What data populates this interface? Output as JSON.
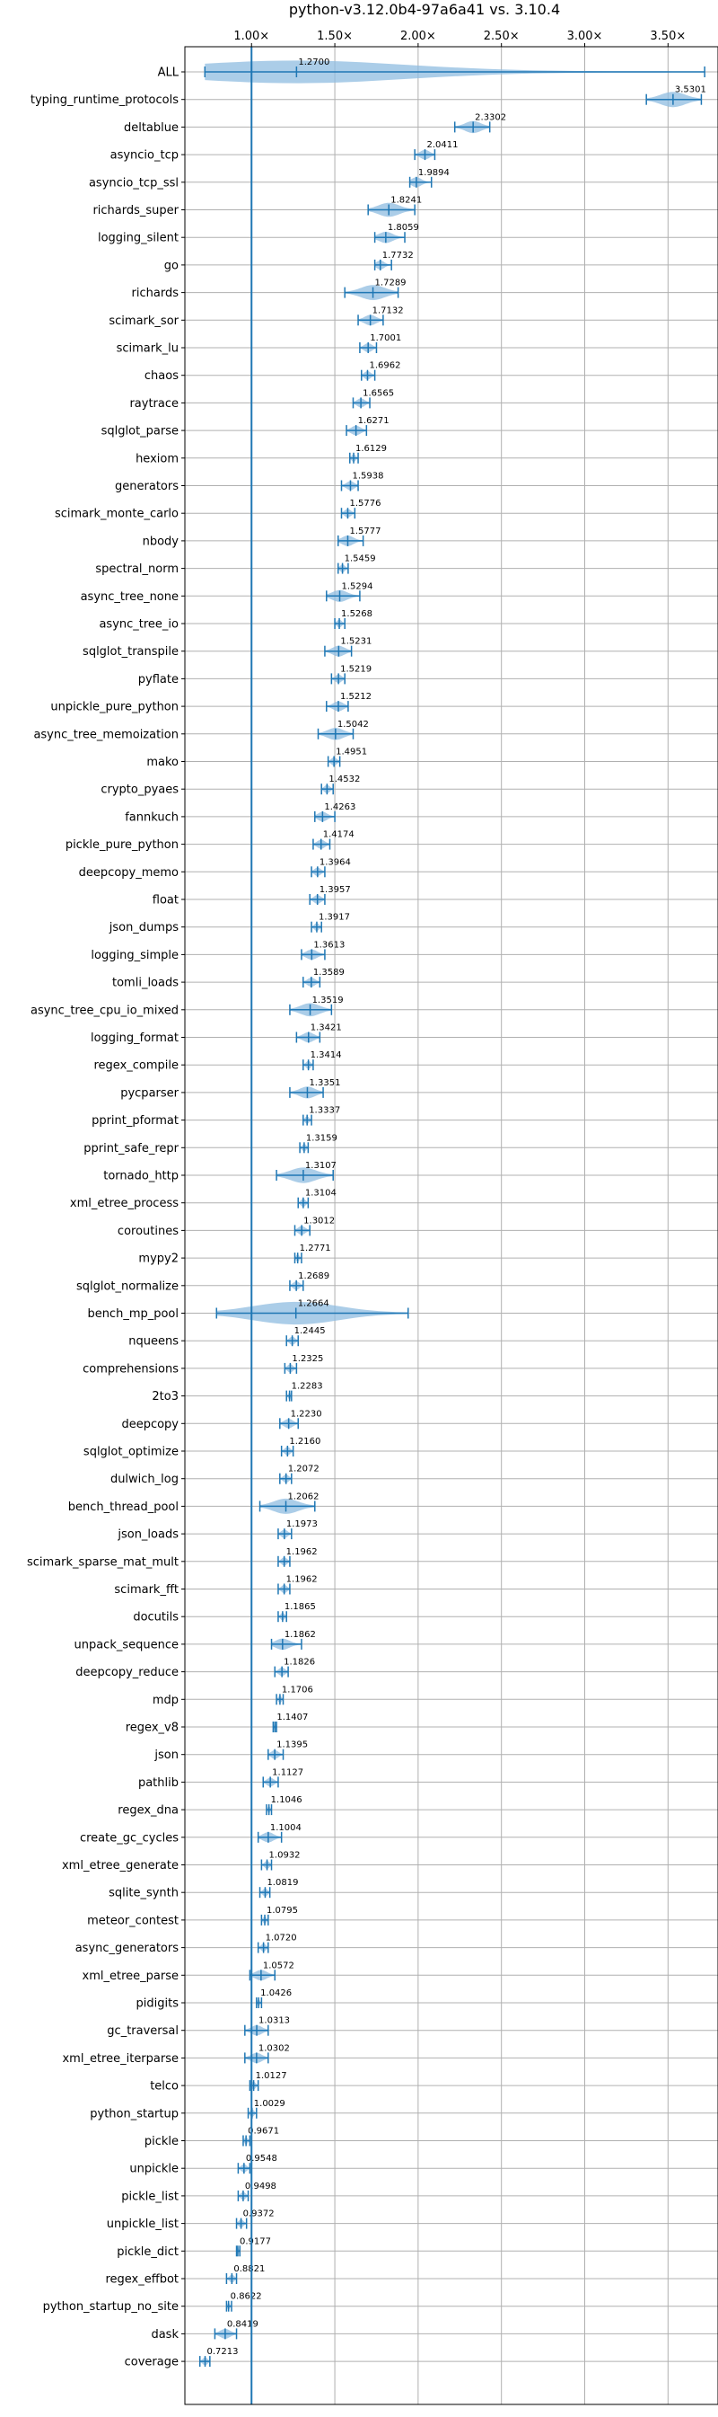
{
  "chart_data": {
    "type": "violin",
    "orientation": "horizontal",
    "title": "python-v3.12.0b4-97a6a41 vs. 3.10.4",
    "xlim": [
      0.6,
      3.8
    ],
    "xticks": [
      1.0,
      1.5,
      2.0,
      2.5,
      3.0,
      3.5
    ],
    "xtick_labels": [
      "1.00×",
      "1.50×",
      "2.00×",
      "2.50×",
      "3.00×",
      "3.50×"
    ],
    "reference_line": 1.0,
    "grid": true,
    "colors": {
      "violin": "#8fbce0",
      "line": "#1f77b4",
      "grid": "#b0b0b0"
    },
    "series": [
      {
        "name": "ALL",
        "mean": 1.27,
        "min": 0.72,
        "max": 3.72,
        "spread": 0.35
      },
      {
        "name": "typing_runtime_protocols",
        "mean": 3.5301,
        "min": 3.37,
        "max": 3.7,
        "spread": 0.16
      },
      {
        "name": "deltablue",
        "mean": 2.3302,
        "min": 2.22,
        "max": 2.43,
        "spread": 0.1
      },
      {
        "name": "asyncio_tcp",
        "mean": 2.0411,
        "min": 1.98,
        "max": 2.1,
        "spread": 0.05
      },
      {
        "name": "asyncio_tcp_ssl",
        "mean": 1.9894,
        "min": 1.95,
        "max": 2.08,
        "spread": 0.05
      },
      {
        "name": "richards_super",
        "mean": 1.8241,
        "min": 1.7,
        "max": 1.98,
        "spread": 0.12
      },
      {
        "name": "logging_silent",
        "mean": 1.8059,
        "min": 1.74,
        "max": 1.92,
        "spread": 0.07
      },
      {
        "name": "go",
        "mean": 1.7732,
        "min": 1.74,
        "max": 1.84,
        "spread": 0.04
      },
      {
        "name": "richards",
        "mean": 1.7289,
        "min": 1.56,
        "max": 1.88,
        "spread": 0.1
      },
      {
        "name": "scimark_sor",
        "mean": 1.7132,
        "min": 1.64,
        "max": 1.79,
        "spread": 0.06
      },
      {
        "name": "scimark_lu",
        "mean": 1.7001,
        "min": 1.65,
        "max": 1.75,
        "spread": 0.04
      },
      {
        "name": "chaos",
        "mean": 1.6962,
        "min": 1.66,
        "max": 1.74,
        "spread": 0.03
      },
      {
        "name": "raytrace",
        "mean": 1.6565,
        "min": 1.61,
        "max": 1.71,
        "spread": 0.04
      },
      {
        "name": "sqlglot_parse",
        "mean": 1.6271,
        "min": 1.57,
        "max": 1.69,
        "spread": 0.05
      },
      {
        "name": "hexiom",
        "mean": 1.6129,
        "min": 1.59,
        "max": 1.64,
        "spread": 0.02
      },
      {
        "name": "generators",
        "mean": 1.5938,
        "min": 1.54,
        "max": 1.64,
        "spread": 0.04
      },
      {
        "name": "scimark_monte_carlo",
        "mean": 1.5776,
        "min": 1.54,
        "max": 1.62,
        "spread": 0.03
      },
      {
        "name": "nbody",
        "mean": 1.5777,
        "min": 1.52,
        "max": 1.67,
        "spread": 0.05
      },
      {
        "name": "spectral_norm",
        "mean": 1.5459,
        "min": 1.52,
        "max": 1.58,
        "spread": 0.02
      },
      {
        "name": "async_tree_none",
        "mean": 1.5294,
        "min": 1.45,
        "max": 1.65,
        "spread": 0.06
      },
      {
        "name": "async_tree_io",
        "mean": 1.5268,
        "min": 1.5,
        "max": 1.56,
        "spread": 0.02
      },
      {
        "name": "sqlglot_transpile",
        "mean": 1.5231,
        "min": 1.44,
        "max": 1.6,
        "spread": 0.06
      },
      {
        "name": "pyflate",
        "mean": 1.5219,
        "min": 1.48,
        "max": 1.56,
        "spread": 0.03
      },
      {
        "name": "unpickle_pure_python",
        "mean": 1.5212,
        "min": 1.45,
        "max": 1.58,
        "spread": 0.05
      },
      {
        "name": "async_tree_memoization",
        "mean": 1.5042,
        "min": 1.4,
        "max": 1.61,
        "spread": 0.07
      },
      {
        "name": "mako",
        "mean": 1.4951,
        "min": 1.46,
        "max": 1.53,
        "spread": 0.03
      },
      {
        "name": "crypto_pyaes",
        "mean": 1.4532,
        "min": 1.42,
        "max": 1.49,
        "spread": 0.03
      },
      {
        "name": "fannkuch",
        "mean": 1.4263,
        "min": 1.38,
        "max": 1.5,
        "spread": 0.05
      },
      {
        "name": "pickle_pure_python",
        "mean": 1.4174,
        "min": 1.37,
        "max": 1.47,
        "spread": 0.04
      },
      {
        "name": "deepcopy_memo",
        "mean": 1.3964,
        "min": 1.36,
        "max": 1.44,
        "spread": 0.03
      },
      {
        "name": "float",
        "mean": 1.3957,
        "min": 1.35,
        "max": 1.44,
        "spread": 0.03
      },
      {
        "name": "json_dumps",
        "mean": 1.3917,
        "min": 1.36,
        "max": 1.42,
        "spread": 0.02
      },
      {
        "name": "logging_simple",
        "mean": 1.3613,
        "min": 1.3,
        "max": 1.44,
        "spread": 0.05
      },
      {
        "name": "tomli_loads",
        "mean": 1.3589,
        "min": 1.31,
        "max": 1.41,
        "spread": 0.04
      },
      {
        "name": "async_tree_cpu_io_mixed",
        "mean": 1.3519,
        "min": 1.23,
        "max": 1.48,
        "spread": 0.09
      },
      {
        "name": "logging_format",
        "mean": 1.3421,
        "min": 1.27,
        "max": 1.41,
        "spread": 0.05
      },
      {
        "name": "regex_compile",
        "mean": 1.3414,
        "min": 1.31,
        "max": 1.37,
        "spread": 0.02
      },
      {
        "name": "pycparser",
        "mean": 1.3351,
        "min": 1.23,
        "max": 1.43,
        "spread": 0.07
      },
      {
        "name": "pprint_pformat",
        "mean": 1.3337,
        "min": 1.31,
        "max": 1.36,
        "spread": 0.02
      },
      {
        "name": "pprint_safe_repr",
        "mean": 1.3159,
        "min": 1.29,
        "max": 1.34,
        "spread": 0.02
      },
      {
        "name": "tornado_http",
        "mean": 1.3107,
        "min": 1.15,
        "max": 1.49,
        "spread": 0.11
      },
      {
        "name": "xml_etree_process",
        "mean": 1.3104,
        "min": 1.28,
        "max": 1.34,
        "spread": 0.02
      },
      {
        "name": "coroutines",
        "mean": 1.3012,
        "min": 1.26,
        "max": 1.35,
        "spread": 0.03
      },
      {
        "name": "mypy2",
        "mean": 1.2771,
        "min": 1.26,
        "max": 1.3,
        "spread": 0.015
      },
      {
        "name": "sqlglot_normalize",
        "mean": 1.2689,
        "min": 1.23,
        "max": 1.31,
        "spread": 0.03
      },
      {
        "name": "bench_mp_pool",
        "mean": 1.2664,
        "min": 0.79,
        "max": 1.94,
        "spread": 0.4
      },
      {
        "name": "nqueens",
        "mean": 1.2445,
        "min": 1.21,
        "max": 1.28,
        "spread": 0.03
      },
      {
        "name": "comprehensions",
        "mean": 1.2325,
        "min": 1.2,
        "max": 1.27,
        "spread": 0.03
      },
      {
        "name": "2to3",
        "mean": 1.2283,
        "min": 1.21,
        "max": 1.24,
        "spread": 0.01
      },
      {
        "name": "deepcopy",
        "mean": 1.223,
        "min": 1.17,
        "max": 1.28,
        "spread": 0.04
      },
      {
        "name": "sqlglot_optimize",
        "mean": 1.216,
        "min": 1.18,
        "max": 1.25,
        "spread": 0.03
      },
      {
        "name": "dulwich_log",
        "mean": 1.2072,
        "min": 1.17,
        "max": 1.24,
        "spread": 0.03
      },
      {
        "name": "bench_thread_pool",
        "mean": 1.2062,
        "min": 1.05,
        "max": 1.38,
        "spread": 0.13
      },
      {
        "name": "json_loads",
        "mean": 1.1973,
        "min": 1.16,
        "max": 1.24,
        "spread": 0.03
      },
      {
        "name": "scimark_sparse_mat_mult",
        "mean": 1.1962,
        "min": 1.16,
        "max": 1.23,
        "spread": 0.03
      },
      {
        "name": "scimark_fft",
        "mean": 1.1962,
        "min": 1.16,
        "max": 1.23,
        "spread": 0.03
      },
      {
        "name": "docutils",
        "mean": 1.1865,
        "min": 1.16,
        "max": 1.21,
        "spread": 0.02
      },
      {
        "name": "unpack_sequence",
        "mean": 1.1862,
        "min": 1.12,
        "max": 1.3,
        "spread": 0.06
      },
      {
        "name": "deepcopy_reduce",
        "mean": 1.1826,
        "min": 1.14,
        "max": 1.22,
        "spread": 0.03
      },
      {
        "name": "mdp",
        "mean": 1.1706,
        "min": 1.15,
        "max": 1.19,
        "spread": 0.015
      },
      {
        "name": "regex_v8",
        "mean": 1.1407,
        "min": 1.13,
        "max": 1.15,
        "spread": 0.01
      },
      {
        "name": "json",
        "mean": 1.1395,
        "min": 1.1,
        "max": 1.19,
        "spread": 0.03
      },
      {
        "name": "pathlib",
        "mean": 1.1127,
        "min": 1.07,
        "max": 1.16,
        "spread": 0.03
      },
      {
        "name": "regex_dna",
        "mean": 1.1046,
        "min": 1.09,
        "max": 1.12,
        "spread": 0.01
      },
      {
        "name": "create_gc_cycles",
        "mean": 1.1004,
        "min": 1.04,
        "max": 1.18,
        "spread": 0.05
      },
      {
        "name": "xml_etree_generate",
        "mean": 1.0932,
        "min": 1.06,
        "max": 1.12,
        "spread": 0.02
      },
      {
        "name": "sqlite_synth",
        "mean": 1.0819,
        "min": 1.05,
        "max": 1.11,
        "spread": 0.02
      },
      {
        "name": "meteor_contest",
        "mean": 1.0795,
        "min": 1.06,
        "max": 1.1,
        "spread": 0.015
      },
      {
        "name": "async_generators",
        "mean": 1.072,
        "min": 1.04,
        "max": 1.1,
        "spread": 0.02
      },
      {
        "name": "xml_etree_parse",
        "mean": 1.0572,
        "min": 0.99,
        "max": 1.14,
        "spread": 0.05
      },
      {
        "name": "pidigits",
        "mean": 1.0426,
        "min": 1.03,
        "max": 1.06,
        "spread": 0.01
      },
      {
        "name": "gc_traversal",
        "mean": 1.0313,
        "min": 0.96,
        "max": 1.1,
        "spread": 0.05
      },
      {
        "name": "xml_etree_iterparse",
        "mean": 1.0302,
        "min": 0.96,
        "max": 1.1,
        "spread": 0.04
      },
      {
        "name": "telco",
        "mean": 1.0127,
        "min": 0.99,
        "max": 1.04,
        "spread": 0.02
      },
      {
        "name": "python_startup",
        "mean": 1.0029,
        "min": 0.98,
        "max": 1.03,
        "spread": 0.015
      },
      {
        "name": "pickle",
        "mean": 0.9671,
        "min": 0.95,
        "max": 0.99,
        "spread": 0.015
      },
      {
        "name": "unpickle",
        "mean": 0.9548,
        "min": 0.92,
        "max": 0.99,
        "spread": 0.025
      },
      {
        "name": "pickle_list",
        "mean": 0.9498,
        "min": 0.92,
        "max": 0.98,
        "spread": 0.02
      },
      {
        "name": "unpickle_list",
        "mean": 0.9372,
        "min": 0.91,
        "max": 0.97,
        "spread": 0.02
      },
      {
        "name": "pickle_dict",
        "mean": 0.9177,
        "min": 0.91,
        "max": 0.93,
        "spread": 0.01
      },
      {
        "name": "regex_effbot",
        "mean": 0.8821,
        "min": 0.85,
        "max": 0.91,
        "spread": 0.02
      },
      {
        "name": "python_startup_no_site",
        "mean": 0.8622,
        "min": 0.85,
        "max": 0.88,
        "spread": 0.01
      },
      {
        "name": "dask",
        "mean": 0.8419,
        "min": 0.78,
        "max": 0.91,
        "spread": 0.04
      },
      {
        "name": "coverage",
        "mean": 0.7213,
        "min": 0.69,
        "max": 0.75,
        "spread": 0.02
      }
    ]
  }
}
